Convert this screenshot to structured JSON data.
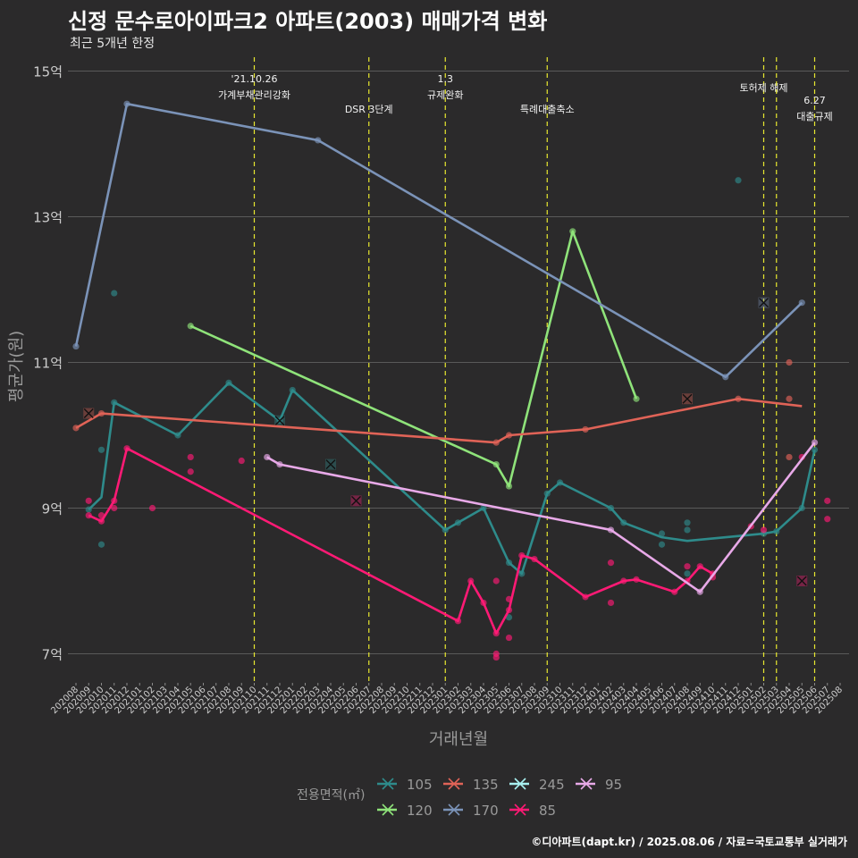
{
  "title": "신정 문수로아이파크2 아파트(2003) 매매가격 변화",
  "subtitle": "최근 5개년 한정",
  "caption": "©디아파트(dapt.kr) / 2025.08.06 / 자료=국토교통부 실거래가",
  "colors": {
    "background": "#2b2a2b",
    "grid": "#5a5a5a",
    "event_line": "#e8e830",
    "axis_text": "#cccccc",
    "title_text": "#9a9a9a"
  },
  "chart_data": {
    "type": "line",
    "xlabel": "거래년월",
    "ylabel": "평균가(원)",
    "y_unit": "억",
    "ylim": [
      6.6,
      15.2
    ],
    "y_ticks": [
      7,
      9,
      11,
      13,
      15
    ],
    "y_tick_labels": [
      "7억",
      "9억",
      "11억",
      "13억",
      "15억"
    ],
    "x_categories": [
      "202008",
      "202009",
      "202010",
      "202011",
      "202012",
      "202101",
      "202102",
      "202103",
      "202104",
      "202105",
      "202106",
      "202107",
      "202108",
      "202109",
      "202110",
      "202111",
      "202112",
      "202201",
      "202202",
      "202203",
      "202204",
      "202205",
      "202206",
      "202207",
      "202208",
      "202209",
      "202210",
      "202211",
      "202212",
      "202301",
      "202302",
      "202303",
      "202304",
      "202305",
      "202306",
      "202307",
      "202308",
      "202309",
      "202310",
      "202311",
      "202312",
      "202401",
      "202402",
      "202403",
      "202404",
      "202405",
      "202406",
      "202407",
      "202408",
      "202409",
      "202410",
      "202411",
      "202412",
      "202501",
      "202502",
      "202503",
      "202504",
      "202505",
      "202506",
      "202507",
      "202508"
    ],
    "legend_title": "전용면적(㎡)",
    "legend_position": "bottom",
    "grid": true,
    "events": [
      {
        "x": "202110",
        "label": [
          "'21.10.26",
          "가계부채관리강화"
        ]
      },
      {
        "x": "202207",
        "label": [
          "DSR 3단계"
        ]
      },
      {
        "x": "202301",
        "label": [
          "1.3",
          "규제완화"
        ]
      },
      {
        "x": "202309",
        "label": [
          "특례대출축소"
        ]
      },
      {
        "x": "202502",
        "label": [
          "토허제 해제"
        ]
      },
      {
        "x": "202503",
        "label": []
      },
      {
        "x": "202506",
        "label": [
          "6.27",
          "대출규제"
        ]
      }
    ],
    "series": [
      {
        "name": "105",
        "color": "#2e8b8b",
        "line": [
          [
            "202009",
            8.98
          ],
          [
            "202010",
            9.15
          ],
          [
            "202011",
            10.45
          ],
          [
            "202104",
            10.0
          ],
          [
            "202108",
            10.72
          ],
          [
            "202112",
            10.2
          ],
          [
            "202201",
            10.62
          ],
          [
            "202301",
            8.7
          ],
          [
            "202302",
            8.8
          ],
          [
            "202304",
            9.0
          ],
          [
            "202306",
            8.25
          ],
          [
            "202307",
            8.1
          ],
          [
            "202309",
            9.2
          ],
          [
            "202310",
            9.35
          ],
          [
            "202402",
            9.0
          ],
          [
            "202403",
            8.8
          ],
          [
            "202406",
            8.6
          ],
          [
            "202408",
            8.55
          ],
          [
            "202502",
            8.65
          ],
          [
            "202503",
            8.68
          ],
          [
            "202505",
            9.0
          ],
          [
            "202506",
            9.8
          ]
        ],
        "points": [
          [
            "202009",
            8.98
          ],
          [
            "202010",
            9.8
          ],
          [
            "202010",
            8.5
          ],
          [
            "202011",
            11.95
          ],
          [
            "202011",
            10.45
          ],
          [
            "202104",
            10.0
          ],
          [
            "202108",
            10.72
          ],
          [
            "202112",
            10.2
          ],
          [
            "202201",
            10.62
          ],
          [
            "202301",
            8.7
          ],
          [
            "202302",
            8.8
          ],
          [
            "202304",
            9.0
          ],
          [
            "202306",
            8.25
          ],
          [
            "202306",
            7.5
          ],
          [
            "202307",
            8.1
          ],
          [
            "202309",
            9.2
          ],
          [
            "202310",
            9.35
          ],
          [
            "202402",
            9.0
          ],
          [
            "202403",
            8.8
          ],
          [
            "202406",
            8.65
          ],
          [
            "202406",
            8.5
          ],
          [
            "202408",
            8.8
          ],
          [
            "202408",
            8.7
          ],
          [
            "202408",
            8.1
          ],
          [
            "202412",
            13.5
          ],
          [
            "202502",
            8.65
          ],
          [
            "202503",
            8.68
          ],
          [
            "202505",
            9.0
          ],
          [
            "202506",
            9.8
          ]
        ],
        "crosses": [
          [
            "202112",
            10.2
          ],
          [
            "202204",
            9.6
          ]
        ]
      },
      {
        "name": "120",
        "color": "#8fe37a",
        "line": [
          [
            "202105",
            11.5
          ],
          [
            "202305",
            9.6
          ],
          [
            "202306",
            9.3
          ],
          [
            "202311",
            12.8
          ],
          [
            "202404",
            10.5
          ]
        ],
        "points": [
          [
            "202105",
            11.5
          ],
          [
            "202305",
            9.6
          ],
          [
            "202306",
            9.3
          ],
          [
            "202311",
            12.8
          ],
          [
            "202404",
            10.5
          ]
        ],
        "crosses": []
      },
      {
        "name": "135",
        "color": "#e06357",
        "line": [
          [
            "202008",
            10.1
          ],
          [
            "202010",
            10.3
          ],
          [
            "202305",
            9.9
          ],
          [
            "202306",
            10.0
          ],
          [
            "202312",
            10.08
          ],
          [
            "202412",
            10.5
          ],
          [
            "202505",
            10.4
          ]
        ],
        "points": [
          [
            "202008",
            10.1
          ],
          [
            "202010",
            10.3
          ],
          [
            "202305",
            9.9
          ],
          [
            "202306",
            10.0
          ],
          [
            "202312",
            10.08
          ],
          [
            "202412",
            10.5
          ],
          [
            "202504",
            11.0
          ],
          [
            "202504",
            10.5
          ],
          [
            "202504",
            9.7
          ]
        ],
        "crosses": [
          [
            "202009",
            10.3
          ],
          [
            "202408",
            10.5
          ]
        ]
      },
      {
        "name": "170",
        "color": "#7b93b8",
        "line": [
          [
            "202008",
            11.22
          ],
          [
            "202012",
            14.55
          ],
          [
            "202203",
            14.05
          ],
          [
            "202411",
            10.8
          ],
          [
            "202505",
            11.82
          ]
        ],
        "points": [
          [
            "202008",
            11.22
          ],
          [
            "202012",
            14.55
          ],
          [
            "202203",
            14.05
          ],
          [
            "202411",
            10.8
          ],
          [
            "202505",
            11.82
          ]
        ],
        "crosses": [
          [
            "202502",
            11.82
          ]
        ]
      },
      {
        "name": "245",
        "color": "#a8f0f0",
        "line": [],
        "points": [],
        "crosses": []
      },
      {
        "name": "85",
        "color": "#ff1a75",
        "line": [
          [
            "202009",
            8.9
          ],
          [
            "202010",
            8.82
          ],
          [
            "202011",
            9.1
          ],
          [
            "202012",
            9.82
          ],
          [
            "202302",
            7.45
          ],
          [
            "202303",
            8.0
          ],
          [
            "202304",
            7.7
          ],
          [
            "202305",
            7.28
          ],
          [
            "202306",
            7.6
          ],
          [
            "202307",
            8.35
          ],
          [
            "202308",
            8.3
          ],
          [
            "202312",
            7.78
          ],
          [
            "202403",
            8.0
          ],
          [
            "202404",
            8.02
          ],
          [
            "202407",
            7.85
          ],
          [
            "202408",
            8.0
          ],
          [
            "202409",
            8.2
          ],
          [
            "202410",
            8.1
          ]
        ],
        "points": [
          [
            "202009",
            9.1
          ],
          [
            "202009",
            8.9
          ],
          [
            "202010",
            8.82
          ],
          [
            "202010",
            8.9
          ],
          [
            "202011",
            9.1
          ],
          [
            "202011",
            9.0
          ],
          [
            "202012",
            9.82
          ],
          [
            "202102",
            9.0
          ],
          [
            "202105",
            9.7
          ],
          [
            "202105",
            9.5
          ],
          [
            "202109",
            9.65
          ],
          [
            "202302",
            7.45
          ],
          [
            "202303",
            8.0
          ],
          [
            "202304",
            7.7
          ],
          [
            "202305",
            7.28
          ],
          [
            "202305",
            8.0
          ],
          [
            "202305",
            7.0
          ],
          [
            "202305",
            6.95
          ],
          [
            "202306",
            7.6
          ],
          [
            "202306",
            7.75
          ],
          [
            "202306",
            7.22
          ],
          [
            "202307",
            8.35
          ],
          [
            "202308",
            8.3
          ],
          [
            "202312",
            7.78
          ],
          [
            "202402",
            8.25
          ],
          [
            "202402",
            7.7
          ],
          [
            "202403",
            8.0
          ],
          [
            "202404",
            8.02
          ],
          [
            "202407",
            7.85
          ],
          [
            "202408",
            8.0
          ],
          [
            "202408",
            8.2
          ],
          [
            "202409",
            8.2
          ],
          [
            "202410",
            8.1
          ],
          [
            "202410",
            8.05
          ],
          [
            "202501",
            8.75
          ],
          [
            "202502",
            8.7
          ],
          [
            "202505",
            9.7
          ],
          [
            "202507",
            9.1
          ],
          [
            "202507",
            8.85
          ]
        ],
        "crosses": [
          [
            "202206",
            9.1
          ],
          [
            "202505",
            8.0
          ]
        ]
      },
      {
        "name": "95",
        "color": "#e8a9e8",
        "line": [
          [
            "202111",
            9.7
          ],
          [
            "202112",
            9.6
          ],
          [
            "202402",
            8.7
          ],
          [
            "202409",
            7.85
          ],
          [
            "202506",
            9.9
          ]
        ],
        "points": [
          [
            "202111",
            9.7
          ],
          [
            "202112",
            9.6
          ],
          [
            "202402",
            8.7
          ],
          [
            "202409",
            7.85
          ],
          [
            "202506",
            9.9
          ]
        ],
        "crosses": []
      }
    ]
  }
}
